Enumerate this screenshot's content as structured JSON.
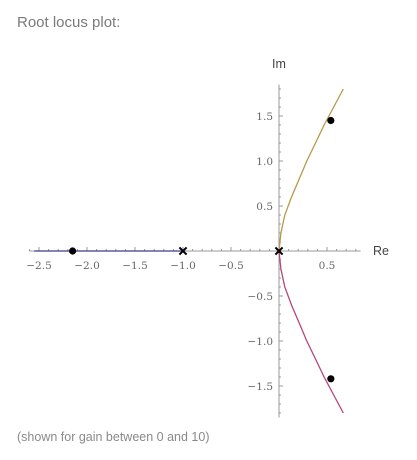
{
  "pod": {
    "title": "Root locus plot:",
    "caption": "(shown for gain between 0 and 10)"
  },
  "chart_data": {
    "type": "line",
    "xlabel": "Re",
    "ylabel": "Im",
    "xlim": [
      -2.6,
      0.85
    ],
    "ylim": [
      -1.85,
      1.85
    ],
    "x_ticks": [
      -2.5,
      -2.0,
      -1.5,
      -1.0,
      -0.5,
      0.5
    ],
    "y_ticks": [
      -1.5,
      -1.0,
      -0.5,
      0.5,
      1.0,
      1.5
    ],
    "x_tick_labels": [
      "−2.5",
      "−2.0",
      "−1.5",
      "−1.0",
      "−0.5",
      "0.5"
    ],
    "y_tick_labels": [
      "−1.5",
      "−1.0",
      "−0.5",
      "0.5",
      "1.0",
      "1.5"
    ],
    "series": [
      {
        "color": "#3a3a8a",
        "points": [
          [
            -1.0,
            0.0
          ],
          [
            -1.3,
            0.0
          ],
          [
            -1.6,
            0.0
          ],
          [
            -1.9,
            0.0
          ],
          [
            -2.2,
            0.0
          ],
          [
            -2.55,
            0.0
          ]
        ]
      },
      {
        "color": "#b8994a",
        "points": [
          [
            0.0,
            0.0
          ],
          [
            0.02,
            0.2
          ],
          [
            0.06,
            0.4
          ],
          [
            0.13,
            0.6
          ],
          [
            0.21,
            0.8
          ],
          [
            0.29,
            1.0
          ],
          [
            0.38,
            1.2
          ],
          [
            0.47,
            1.4
          ],
          [
            0.57,
            1.6
          ],
          [
            0.67,
            1.8
          ]
        ]
      },
      {
        "color": "#b8457a",
        "points": [
          [
            0.0,
            0.0
          ],
          [
            0.02,
            -0.2
          ],
          [
            0.06,
            -0.4
          ],
          [
            0.13,
            -0.6
          ],
          [
            0.21,
            -0.8
          ],
          [
            0.29,
            -1.0
          ],
          [
            0.38,
            -1.2
          ],
          [
            0.47,
            -1.4
          ],
          [
            0.57,
            -1.6
          ],
          [
            0.67,
            -1.8
          ]
        ]
      }
    ],
    "poles": [
      [
        -1.0,
        0.0
      ],
      [
        0.0,
        0.0
      ]
    ],
    "gain_points": [
      [
        -2.15,
        0.0
      ],
      [
        0.54,
        1.45
      ],
      [
        0.54,
        -1.42
      ]
    ],
    "colors": {
      "axis": "#999999",
      "marker": "#000000"
    }
  }
}
